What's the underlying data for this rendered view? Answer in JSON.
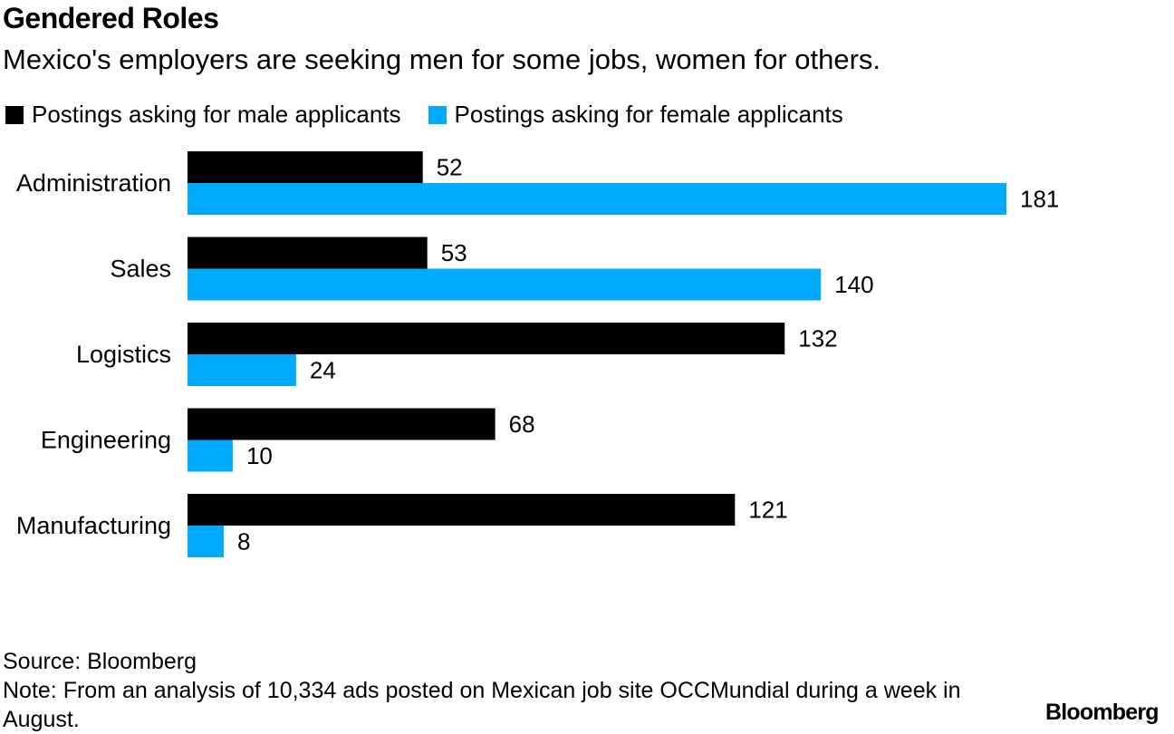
{
  "header": {
    "title": "Gendered Roles",
    "subtitle": "Mexico's employers are seeking men for some jobs, women for others."
  },
  "legend": [
    {
      "label": "Postings asking for male applicants",
      "color": "#000000"
    },
    {
      "label": "Postings asking for female applicants",
      "color": "#00aaff"
    }
  ],
  "chart_data": {
    "type": "bar",
    "orientation": "horizontal",
    "categories": [
      "Administration",
      "Sales",
      "Logistics",
      "Engineering",
      "Manufacturing"
    ],
    "series": [
      {
        "name": "Postings asking for male applicants",
        "color": "#000000",
        "values": [
          52,
          53,
          132,
          68,
          121
        ]
      },
      {
        "name": "Postings asking for female applicants",
        "color": "#00aaff",
        "values": [
          181,
          140,
          24,
          10,
          8
        ]
      }
    ],
    "title": "Gendered Roles",
    "xlim": [
      0,
      181
    ],
    "grid": false
  },
  "footer": {
    "source": "Source: Bloomberg",
    "note": "Note: From an analysis of 10,334 ads posted on Mexican job site OCCMundial during a week in August.",
    "logo": "Bloomberg"
  }
}
